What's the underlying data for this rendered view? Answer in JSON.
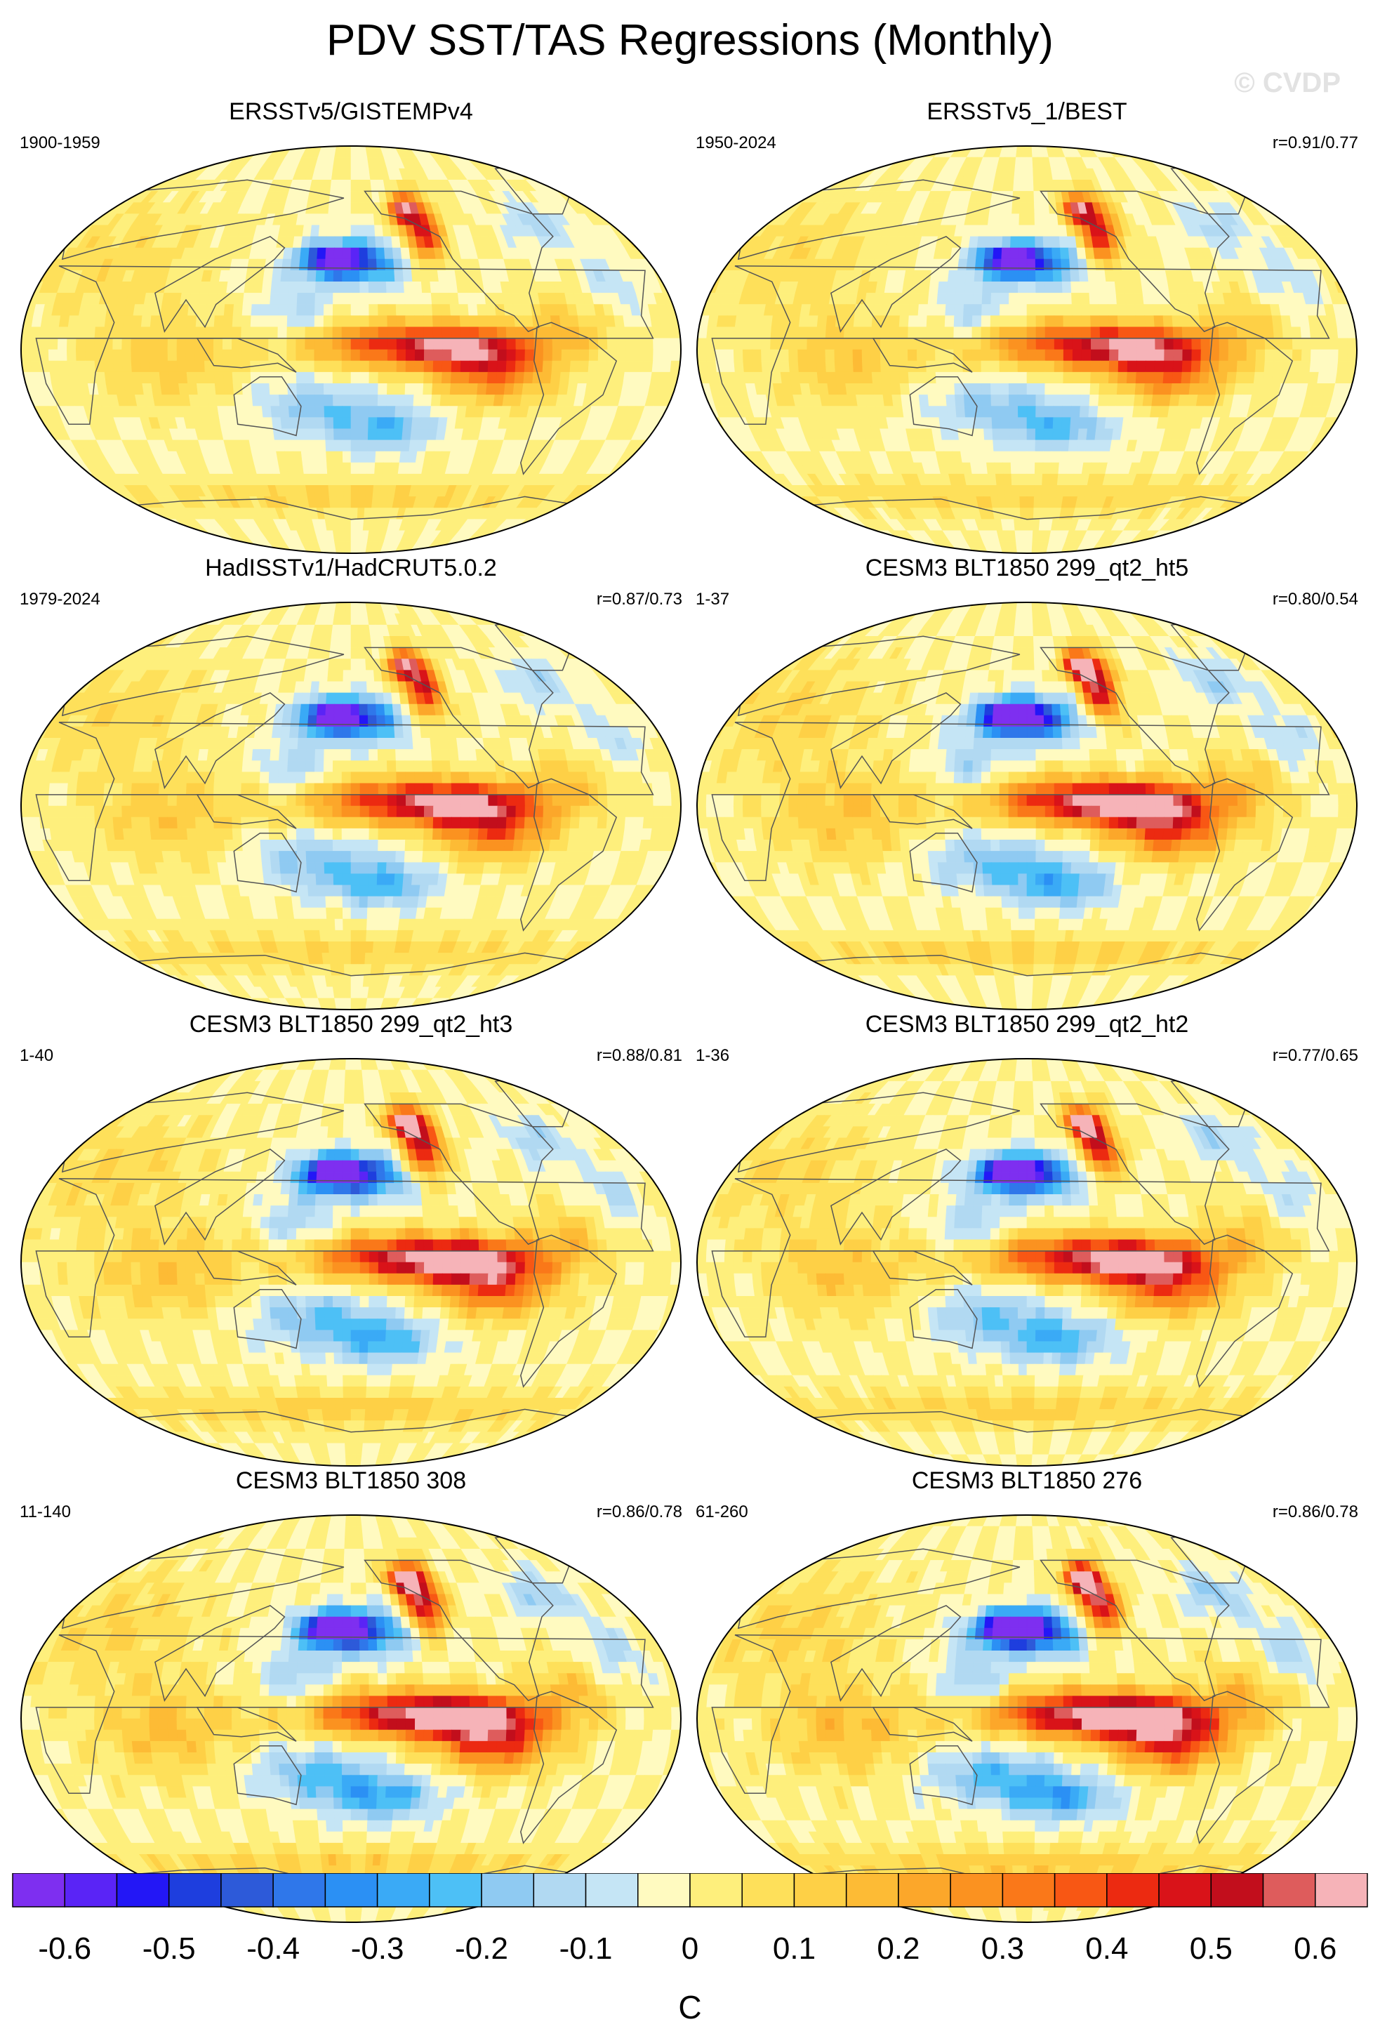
{
  "title": "PDV SST/TAS Regressions (Monthly)",
  "watermark": "© CVDP",
  "colors": {
    "levels": [
      "#7e2ff0",
      "#5a24f6",
      "#2317f6",
      "#1e3ede",
      "#2d5ad9",
      "#2f77ea",
      "#2b90f4",
      "#3aaaf6",
      "#4dc0f6",
      "#8fcaf2",
      "#b1d9f2",
      "#c5e5f5",
      "#fffac0",
      "#feef7c",
      "#fee05a",
      "#fed046",
      "#fdbb35",
      "#fca72a",
      "#fb9220",
      "#fa7819",
      "#f85714",
      "#ec2a11",
      "#d91319",
      "#c20e1c",
      "#de5c5c",
      "#f6b3b8"
    ],
    "land_outline": "#555555",
    "missing": "#ffffff"
  },
  "panels": [
    {
      "title": "ERSSTv5/GISTEMPv4",
      "period": "1900-1959",
      "corr": "",
      "intensity": 0.85
    },
    {
      "title": "ERSSTv5_1/BEST",
      "period": "1950-2024",
      "corr": "r=0.91/0.77",
      "intensity": 0.85
    },
    {
      "title": "HadISSTv1/HadCRUT5.0.2",
      "period": "1979-2024",
      "corr": "r=0.87/0.73",
      "intensity": 0.9
    },
    {
      "title": "CESM3 BLT1850 299_qt2_ht5",
      "period": "1-37",
      "corr": "r=0.80/0.54",
      "intensity": 1.0
    },
    {
      "title": "CESM3 BLT1850 299_qt2_ht3",
      "period": "1-40",
      "corr": "r=0.88/0.81",
      "intensity": 1.0
    },
    {
      "title": "CESM3 BLT1850 299_qt2_ht2",
      "period": "1-36",
      "corr": "r=0.77/0.65",
      "intensity": 0.95
    },
    {
      "title": "CESM3 BLT1850 308",
      "period": "11-140",
      "corr": "r=0.86/0.78",
      "intensity": 1.05
    },
    {
      "title": "CESM3 BLT1850 276",
      "period": "61-260",
      "corr": "r=0.86/0.78",
      "intensity": 1.1
    }
  ],
  "chart_data": {
    "type": "heatmap",
    "projection": "Robinson (Pacific-centered)",
    "variable": "SST/TAS regression onto PDV index",
    "units": "C",
    "colorbar": {
      "min": -0.65,
      "max": 0.65,
      "interval": 0.05,
      "tick_values": [
        -0.6,
        -0.5,
        -0.4,
        -0.3,
        -0.2,
        -0.1,
        0,
        0.1,
        0.2,
        0.3,
        0.4,
        0.5,
        0.6
      ],
      "tick_labels": [
        "-0.6",
        "-0.5",
        "-0.4",
        "-0.3",
        "-0.2",
        "-0.1",
        "0",
        "0.1",
        "0.2",
        "0.3",
        "0.4",
        "0.5",
        "0.6"
      ]
    },
    "features": [
      {
        "region": "tropical eastern Pacific",
        "value": 0.45
      },
      {
        "region": "central North Pacific (KOE)",
        "value": -0.6
      },
      {
        "region": "NE Pacific coast / Alaska",
        "value": 0.55
      },
      {
        "region": "western tropical / SW Pacific",
        "value": -0.15
      },
      {
        "region": "Indian Ocean",
        "value": 0.15
      },
      {
        "region": "South Pacific",
        "value": -0.2
      },
      {
        "region": "Southern Ocean",
        "value": 0.1
      }
    ]
  }
}
